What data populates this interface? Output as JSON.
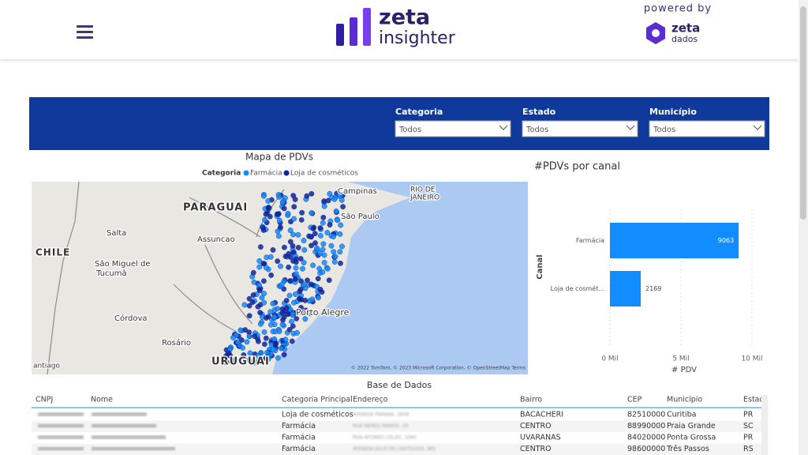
{
  "header": {
    "logo_top": "zeta",
    "logo_bottom": "insighter",
    "powered_by": "powered by",
    "partner_top": "zeta",
    "partner_bottom": "dados"
  },
  "filters": [
    {
      "label": "Categoria",
      "value": "Todos"
    },
    {
      "label": "Estado",
      "value": "Todos"
    },
    {
      "label": "Município",
      "value": "Todos"
    }
  ],
  "map": {
    "title": "Mapa de PDVs",
    "legend_title": "Categoria",
    "legend": [
      "Farmácia",
      "Loja de cosméticos"
    ],
    "labels": [
      "PARAGUAI",
      "CHILE",
      "Salta",
      "Assuncao",
      "São Miguel de",
      "Tucumã",
      "Córdova",
      "Rosário",
      "URUGUAI",
      "Campinas",
      "RIO DE",
      "JANEIRO",
      "São Paulo",
      "Porto Alegre",
      "antiago"
    ],
    "attribution": "© 2022 TomTom, © 2023 Microsoft Corporation, © OpenStreetMap  Terms"
  },
  "chart_data": {
    "type": "bar",
    "orientation": "horizontal",
    "title": "#PDVs por canal",
    "y_label": "Canal",
    "x_label": "# PDV",
    "categories": [
      "Farmácia",
      "Loja de cosmét..."
    ],
    "values": [
      9063,
      2169
    ],
    "color": "#118dff",
    "xlim": [
      0,
      10000
    ],
    "xticks": [
      {
        "value": 0,
        "label": "0 Mil"
      },
      {
        "value": 5000,
        "label": "5 Mil"
      },
      {
        "value": 10000,
        "label": "10 Mil"
      }
    ],
    "grid": true
  },
  "table": {
    "title": "Base de Dados",
    "columns": [
      "CNPJ",
      "Nome",
      "Categoria Principal",
      "Endereço",
      "Bairro",
      "CEP",
      "Município",
      "Estad"
    ],
    "rows": [
      [
        "Loja de cosméticos",
        "AVENIDA PARANA, 2848",
        "BACACHERI",
        "82510000",
        "Curitiba",
        "PR"
      ],
      [
        "Farmácia",
        "RUA NEREU RAMOS, 20",
        "CENTRO",
        "88990000",
        "Praia Grande",
        "SC"
      ],
      [
        "Farmácia",
        "RUA AFONSO CELSO, 1060",
        "UVARANAS",
        "84020000",
        "Ponta Grossa",
        "PR"
      ],
      [
        "Farmácia",
        "AVENIDA JULIO DE CASTILHOS, 881",
        "CENTRO",
        "98600000",
        "Três Passos",
        "RS"
      ]
    ]
  }
}
